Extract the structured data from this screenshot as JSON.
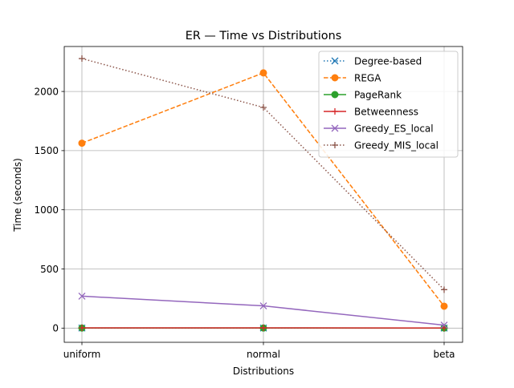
{
  "chart_data": {
    "type": "line",
    "title": "ER — Time vs Distributions",
    "xlabel": "Distributions",
    "ylabel": "Time (seconds)",
    "categories": [
      "uniform",
      "normal",
      "beta"
    ],
    "ylim": [
      -120,
      2380
    ],
    "yticks": [
      0,
      500,
      1000,
      1500,
      2000
    ],
    "grid": true,
    "legend_position": "top-right",
    "series": [
      {
        "name": "Degree-based",
        "values": [
          0.5,
          0.5,
          0.3
        ],
        "color": "#1f77b4",
        "dash": "dotted",
        "marker": "x"
      },
      {
        "name": "REGA",
        "values": [
          1563,
          2157,
          185
        ],
        "color": "#ff7f0e",
        "dash": "dashed",
        "marker": "o"
      },
      {
        "name": "PageRank",
        "values": [
          1,
          1,
          0.5
        ],
        "color": "#2ca02c",
        "dash": "solid",
        "marker": "o"
      },
      {
        "name": "Betweenness",
        "values": [
          2,
          2,
          1
        ],
        "color": "#d62728",
        "dash": "solid",
        "marker": "+"
      },
      {
        "name": "Greedy_ES_local",
        "values": [
          270,
          188,
          25
        ],
        "color": "#9467bd",
        "dash": "solid",
        "marker": "x"
      },
      {
        "name": "Greedy_MIS_local",
        "values": [
          2278,
          1865,
          325
        ],
        "color": "#8c564b",
        "dash": "dotted",
        "marker": "+"
      }
    ]
  }
}
